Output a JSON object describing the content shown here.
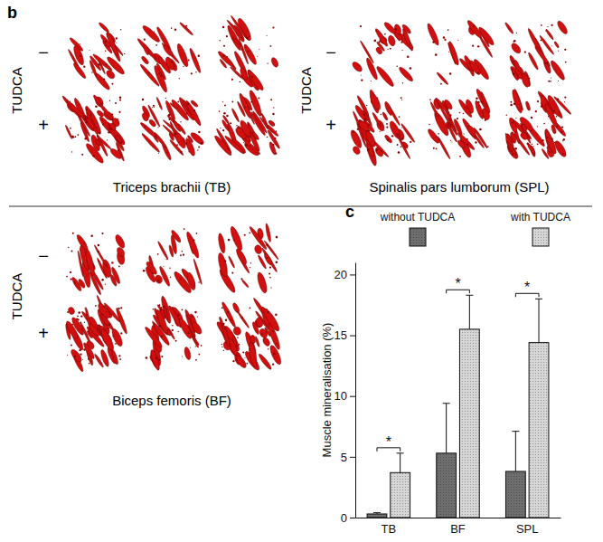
{
  "panel_b": {
    "letter": "b",
    "panels": [
      {
        "muscle": "Triceps brachii (TB)",
        "factor": "TUDCA",
        "rows": [
          "−",
          "+"
        ]
      },
      {
        "muscle": "Spinalis pars lumborum (SPL)",
        "factor": "TUDCA",
        "rows": [
          "−",
          "+"
        ]
      },
      {
        "muscle": "Biceps femoris (BF)",
        "factor": "TUDCA",
        "rows": [
          "−",
          "+"
        ]
      }
    ]
  },
  "panel_c": {
    "letter": "c"
  },
  "chart_data": {
    "type": "bar",
    "y_label": "Muscle mineralisation (%)",
    "categories": [
      "TB",
      "BF",
      "SPL"
    ],
    "series": [
      {
        "name": "without TUDCA",
        "color": "#6e6e6e",
        "values": [
          0.3,
          5.3,
          3.8
        ],
        "errors": [
          0.1,
          4.1,
          3.3
        ]
      },
      {
        "name": "with TUDCA",
        "color": "#d6d6d6",
        "values": [
          3.7,
          15.5,
          14.4
        ],
        "errors": [
          1.6,
          2.8,
          3.6
        ]
      }
    ],
    "annotations": [
      {
        "category": "TB",
        "text": "*"
      },
      {
        "category": "BF",
        "text": "*"
      },
      {
        "category": "SPL",
        "text": "*"
      }
    ],
    "ylim": [
      0,
      21
    ],
    "yticks": [
      0,
      5,
      10,
      15,
      20
    ],
    "grid": false,
    "legend": "top"
  }
}
